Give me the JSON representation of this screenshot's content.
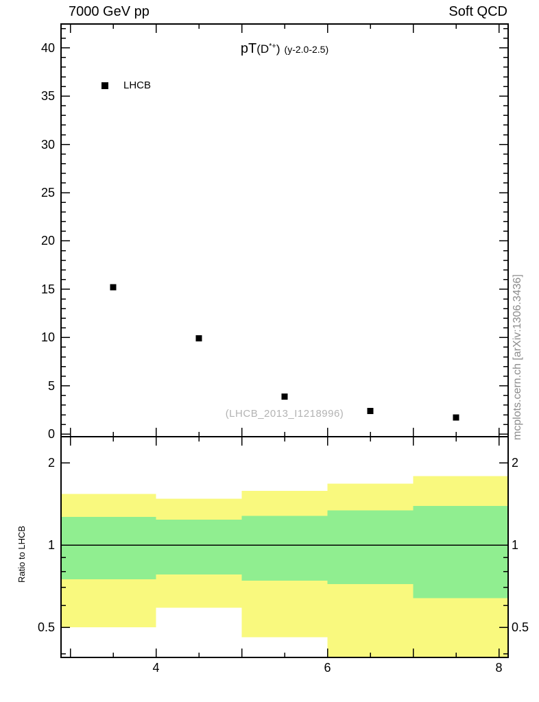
{
  "header": {
    "left": "7000 GeV pp",
    "right": "Soft QCD"
  },
  "title": {
    "observable": "pT",
    "particle_open": "(D",
    "particle_sup": "*+",
    "particle_close": ")",
    "selection": "(y-2.0-2.5)"
  },
  "legend": {
    "label": "LHCB"
  },
  "watermark": "(LHCB_2013_I1218996)",
  "side_note": "mcplots.cern.ch [arXiv:1306.3436]",
  "ratio_axis_label": "Ratio to LHCB",
  "colors": {
    "band_outer": "#f9f97e",
    "band_inner": "#90ee90",
    "marker": "#000000",
    "watermark_text": "#b3b3b3",
    "side_note_text": "#8c8c8c"
  },
  "chart_data": {
    "type": "scatter",
    "title": "pT(D*+) (y-2.0-2.5)",
    "x_axis": {
      "range": [
        2.9,
        8.1
      ],
      "labeled_ticks": [
        4,
        6,
        8
      ],
      "minor_step": 0.5
    },
    "main_panel": {
      "y_range": [
        -0.2,
        42.4
      ],
      "y_labeled_ticks": [
        0,
        5,
        10,
        15,
        20,
        25,
        30,
        35,
        40
      ],
      "y_minor_step": 1,
      "series": [
        {
          "name": "LHCB",
          "marker": "filled-square",
          "x": [
            3.5,
            4.5,
            5.5,
            6.5,
            7.5
          ],
          "y": [
            15.2,
            9.9,
            3.9,
            2.4,
            1.7
          ]
        }
      ]
    },
    "ratio_panel": {
      "axis_label": "Ratio to LHCB",
      "y_scale": "log",
      "y_range": [
        0.39,
        2.48
      ],
      "y_labeled_ticks": [
        0.5,
        1,
        2
      ],
      "y_minor_ticks": [
        0.4,
        0.6,
        0.7,
        0.8,
        0.9
      ],
      "reference_line": 1.0,
      "bands": [
        {
          "x0": 2.9,
          "x1": 4.0,
          "outer": [
            0.5,
            1.54
          ],
          "inner": [
            0.75,
            1.27
          ]
        },
        {
          "x0": 4.0,
          "x1": 5.0,
          "outer": [
            0.59,
            1.48
          ],
          "inner": [
            0.78,
            1.24
          ]
        },
        {
          "x0": 5.0,
          "x1": 6.0,
          "outer": [
            0.46,
            1.58
          ],
          "inner": [
            0.74,
            1.28
          ]
        },
        {
          "x0": 6.0,
          "x1": 7.0,
          "outer": [
            0.34,
            1.68
          ],
          "inner": [
            0.72,
            1.34
          ]
        },
        {
          "x0": 7.0,
          "x1": 8.1,
          "outer": [
            0.34,
            1.79
          ],
          "inner": [
            0.64,
            1.39
          ]
        }
      ]
    }
  }
}
